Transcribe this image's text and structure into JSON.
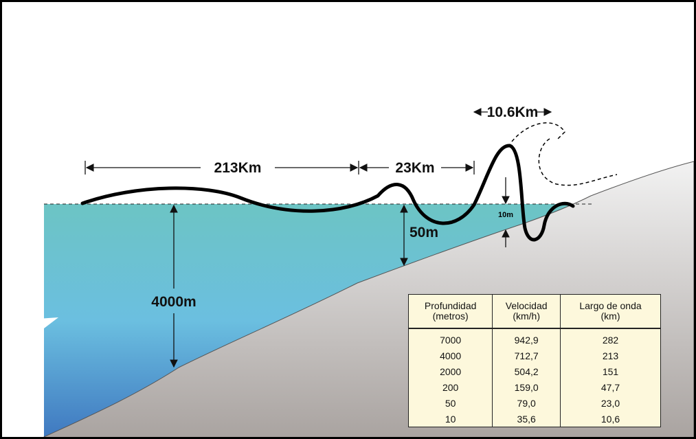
{
  "labels": {
    "wavelength_deep": "213Km",
    "wavelength_mid": "23Km",
    "wavelength_shore": "10.6Km",
    "depth_deep": "4000m",
    "depth_mid": "50m",
    "height_shore": "10m"
  },
  "table": {
    "headers": [
      [
        "Profundidad",
        "(metros)"
      ],
      [
        "Velocidad",
        "(km/h)"
      ],
      [
        "Largo de onda",
        "(km)"
      ]
    ],
    "rows": [
      [
        "7000",
        "942,9",
        "282"
      ],
      [
        "4000",
        "712,7",
        "213"
      ],
      [
        "2000",
        "504,2",
        "151"
      ],
      [
        "200",
        "159,0",
        "47,7"
      ],
      [
        "50",
        "79,0",
        "23,0"
      ],
      [
        "10",
        "35,6",
        "10,6"
      ]
    ]
  }
}
